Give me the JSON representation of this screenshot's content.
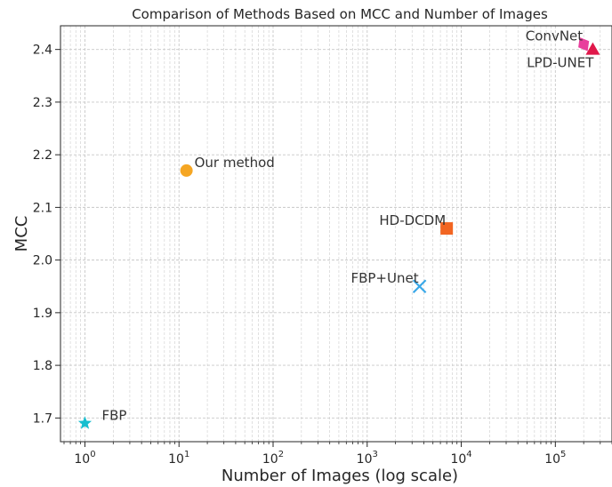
{
  "chart_data": {
    "type": "scatter",
    "title": "Comparison of Methods Based on MCC and Number of Images",
    "xlabel": "Number of Images (log scale)",
    "ylabel": "MCC",
    "xscale": "log",
    "xlim": [
      0.55,
      400000
    ],
    "ylim": [
      1.655,
      2.445
    ],
    "grid": true,
    "x_ticks": [
      {
        "value": 1,
        "base": "10",
        "exp": "0"
      },
      {
        "value": 10,
        "base": "10",
        "exp": "1"
      },
      {
        "value": 100,
        "base": "10",
        "exp": "2"
      },
      {
        "value": 1000,
        "base": "10",
        "exp": "3"
      },
      {
        "value": 10000,
        "base": "10",
        "exp": "4"
      },
      {
        "value": 100000,
        "base": "10",
        "exp": "5"
      }
    ],
    "y_ticks": [
      "1.7",
      "1.8",
      "1.9",
      "2.0",
      "2.1",
      "2.2",
      "2.3",
      "2.4"
    ],
    "points": [
      {
        "label": "FBP",
        "x": 1,
        "y": 1.69,
        "marker": "star",
        "color": "#17becf",
        "label_pos": "right"
      },
      {
        "label": "Our method",
        "x": 12,
        "y": 2.17,
        "marker": "circle",
        "color": "#f5a623",
        "label_pos": "upper-right"
      },
      {
        "label": "FBP+Unet",
        "x": 3600,
        "y": 1.95,
        "marker": "x",
        "color": "#3aa8e8",
        "label_pos": "upper-left"
      },
      {
        "label": "HD-DCDM",
        "x": 7000,
        "y": 2.06,
        "marker": "square",
        "color": "#f26522",
        "label_pos": "upper-left"
      },
      {
        "label": "ConvNet",
        "x": 200000,
        "y": 2.41,
        "marker": "diamond",
        "color": "#e83e9c",
        "label_pos": "upper-left"
      },
      {
        "label": "LPD-UNET",
        "x": 250000,
        "y": 2.4,
        "marker": "triangle",
        "color": "#e0184a",
        "label_pos": "lower-left"
      }
    ]
  }
}
